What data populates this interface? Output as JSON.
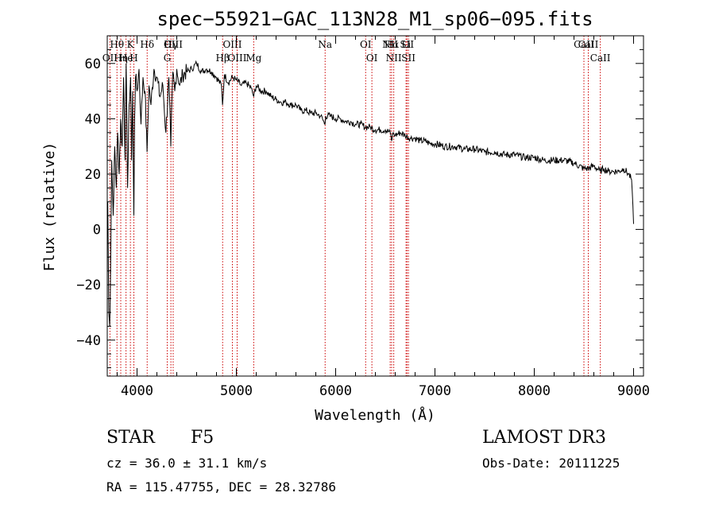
{
  "chart_data": {
    "type": "line",
    "title": "spec−55921−GAC_113N28_M1_sp06−095.fits",
    "xlabel": "Wavelength (Å)",
    "ylabel": "Flux (relative)",
    "xlim": [
      3700,
      9100
    ],
    "ylim": [
      -53,
      70
    ],
    "xticks": [
      4000,
      5000,
      6000,
      7000,
      8000,
      9000
    ],
    "yticks": [
      -40,
      -20,
      0,
      20,
      40,
      60
    ],
    "ytick_labels": [
      "−40",
      "−20",
      "0",
      "20",
      "40",
      "60"
    ],
    "series": [
      {
        "name": "flux",
        "x": [
          3705,
          3715,
          3725,
          3735,
          3745,
          3760,
          3775,
          3790,
          3805,
          3820,
          3835,
          3850,
          3865,
          3880,
          3890,
          3905,
          3920,
          3935,
          3945,
          3955,
          3968,
          3975,
          3985,
          4000,
          4020,
          4040,
          4060,
          4080,
          4101,
          4120,
          4140,
          4170,
          4200,
          4230,
          4260,
          4290,
          4320,
          4340,
          4360,
          4380,
          4400,
          4430,
          4460,
          4500,
          4550,
          4600,
          4650,
          4700,
          4750,
          4800,
          4850,
          4861,
          4880,
          4920,
          4960,
          5000,
          5050,
          5100,
          5150,
          5175,
          5200,
          5250,
          5300,
          5350,
          5400,
          5450,
          5500,
          5550,
          5600,
          5650,
          5700,
          5750,
          5800,
          5850,
          5893,
          5900,
          5950,
          6000,
          6050,
          6100,
          6150,
          6200,
          6250,
          6300,
          6350,
          6400,
          6450,
          6500,
          6550,
          6563,
          6580,
          6600,
          6650,
          6700,
          6750,
          6800,
          6850,
          6900,
          6950,
          7000,
          7100,
          7200,
          7300,
          7400,
          7500,
          7600,
          7700,
          7800,
          7900,
          8000,
          8100,
          8200,
          8300,
          8400,
          8498,
          8542,
          8600,
          8662,
          8700,
          8750,
          8800,
          8850,
          8900,
          8950,
          8980,
          9000
        ],
        "y": [
          10,
          -30,
          -35,
          -10,
          25,
          5,
          30,
          15,
          35,
          20,
          40,
          30,
          55,
          25,
          60,
          15,
          45,
          55,
          25,
          50,
          5,
          40,
          55,
          50,
          58,
          38,
          55,
          50,
          28,
          52,
          45,
          58,
          55,
          48,
          52,
          35,
          55,
          30,
          57,
          50,
          58,
          52,
          56,
          57,
          58,
          60,
          57,
          58,
          57,
          55,
          52,
          45,
          56,
          53,
          55,
          54,
          52,
          53,
          51,
          48,
          52,
          50,
          50,
          48,
          47,
          46,
          46,
          45,
          45,
          43,
          43,
          42,
          42,
          41,
          38,
          41,
          41,
          40,
          40,
          39,
          39,
          38,
          38,
          37,
          37,
          36,
          36,
          36,
          35,
          32,
          35,
          34,
          35,
          34,
          33,
          33,
          32,
          32,
          31,
          31,
          30,
          30,
          29,
          29,
          28,
          28,
          27,
          27,
          26,
          26,
          25,
          25,
          25,
          24,
          22,
          22,
          23,
          21,
          22,
          21,
          21,
          21,
          22,
          20,
          18,
          2
        ]
      }
    ],
    "lines": [
      {
        "wavelength": 3727,
        "label": "OII",
        "row": 2
      },
      {
        "wavelength": 3798,
        "label": "Hθ",
        "row": 1
      },
      {
        "wavelength": 3836,
        "label": "Hη",
        "row": 2
      },
      {
        "wavelength": 3889,
        "label": "He",
        "row": 2
      },
      {
        "wavelength": 3933,
        "label": "K",
        "row": 1
      },
      {
        "wavelength": 3968,
        "label": "H",
        "row": 2
      },
      {
        "wavelength": 4102,
        "label": "Hδ",
        "row": 1
      },
      {
        "wavelength": 4304,
        "label": "G",
        "row": 2
      },
      {
        "wavelength": 4341,
        "label": "Hγ",
        "row": 1
      },
      {
        "wavelength": 4364,
        "label": "OIII",
        "row": 1
      },
      {
        "wavelength": 4862,
        "label": "Hβ",
        "row": 2
      },
      {
        "wavelength": 4960,
        "label": "OIII",
        "row": 1
      },
      {
        "wavelength": 5008,
        "label": "OIII",
        "row": 2
      },
      {
        "wavelength": 5175,
        "label": "Mg",
        "row": 2
      },
      {
        "wavelength": 5894,
        "label": "Na",
        "row": 1
      },
      {
        "wavelength": 6302,
        "label": "OI",
        "row": 1
      },
      {
        "wavelength": 6365,
        "label": "OI",
        "row": 2
      },
      {
        "wavelength": 6549,
        "label": "NII",
        "row": 1
      },
      {
        "wavelength": 6564,
        "label": "Hα",
        "row": 1
      },
      {
        "wavelength": 6585,
        "label": "NII",
        "row": 2
      },
      {
        "wavelength": 6709,
        "label": "Li",
        "row": 1
      },
      {
        "wavelength": 6718,
        "label": "SII",
        "row": 1
      },
      {
        "wavelength": 6733,
        "label": "SII",
        "row": 2
      },
      {
        "wavelength": 8500,
        "label": "CaII",
        "row": 1
      },
      {
        "wavelength": 8544,
        "label": "CaII",
        "row": 1
      },
      {
        "wavelength": 8665,
        "label": "CaII",
        "row": 2
      }
    ],
    "grid": false,
    "legend": "none"
  },
  "footer": {
    "object_class": "STAR",
    "subclass": "F5",
    "cz": "cz = 36.0 ± 31.1 km/s",
    "coords": "RA = 115.47755, DEC =  28.32786",
    "survey": "LAMOST DR3",
    "obs_date": "Obs-Date: 20111225"
  },
  "colors": {
    "spectrum": "#000000",
    "line_markers": "#cc0000",
    "axes": "#000000",
    "background": "#ffffff"
  }
}
